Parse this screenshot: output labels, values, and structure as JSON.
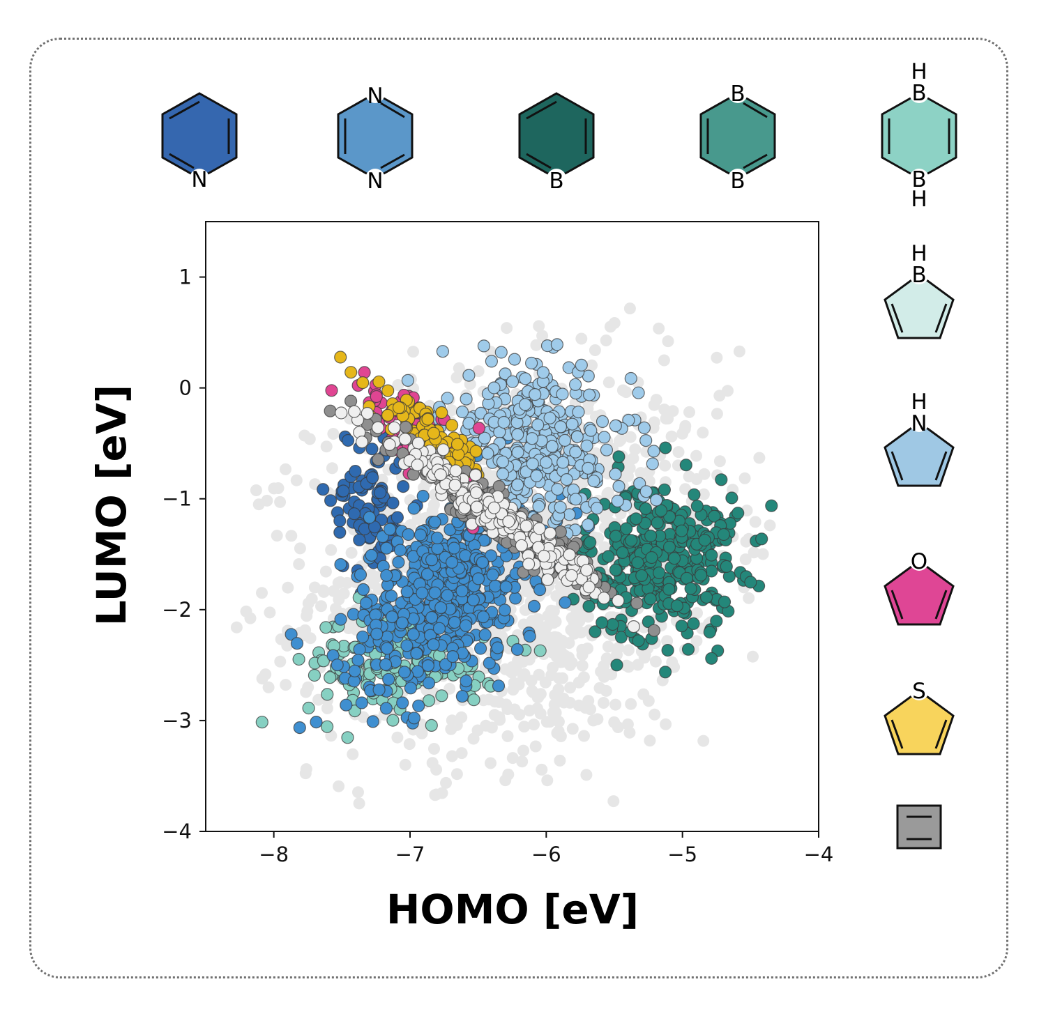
{
  "chart_data": {
    "type": "scatter",
    "title": "",
    "xlabel": "HOMO [eV]",
    "ylabel": "LUMO [eV]",
    "xlim": [
      -8.5,
      -4
    ],
    "ylim": [
      -4,
      1.5
    ],
    "xticks": [
      -8,
      -7,
      -6,
      -5,
      -4
    ],
    "yticks": [
      1,
      0,
      -1,
      -2,
      -3,
      -4
    ],
    "xtick_labels": [
      "−8",
      "−7",
      "−6",
      "−5",
      "−4"
    ],
    "ytick_labels": [
      "1",
      "0",
      "−1",
      "−2",
      "−3",
      "−4"
    ],
    "grid": false,
    "background_series": {
      "name": "all molecules",
      "color": "#e6e6e6",
      "n": 1400,
      "homo_center": -6.2,
      "lumo_center": -1.6,
      "homo_spread": 0.75,
      "lumo_spread": 0.85,
      "homo_range": [
        -8.3,
        -4.2
      ],
      "lumo_range": [
        -3.75,
        1.45
      ]
    },
    "series": [
      {
        "name": "pyridine",
        "color": "#2f6ab0",
        "n": 90,
        "homo_center": -7.3,
        "lumo_center": -1.05,
        "homo_spread": 0.14,
        "lumo_spread": 0.35,
        "slope": -0.3
      },
      {
        "name": "diborinine",
        "color": "#86d0c2",
        "n": 170,
        "homo_center": -7.05,
        "lumo_center": -2.45,
        "homo_spread": 0.35,
        "lumo_spread": 0.25,
        "slope": 0.1
      },
      {
        "name": "borinine",
        "color": "#24877a",
        "n": 330,
        "homo_center": -5.15,
        "lumo_center": -1.55,
        "homo_spread": 0.28,
        "lumo_spread": 0.35,
        "slope": 0.1
      },
      {
        "name": "pyrazine",
        "color": "#3f8fd0",
        "n": 520,
        "homo_center": -6.75,
        "lumo_center": -1.85,
        "homo_spread": 0.35,
        "lumo_spread": 0.4,
        "slope": 0.5
      },
      {
        "name": "pyrrole",
        "color": "#9fcbea",
        "n": 320,
        "homo_center": -6.05,
        "lumo_center": -0.5,
        "homo_spread": 0.35,
        "lumo_spread": 0.35,
        "slope": -0.3
      },
      {
        "name": "furan",
        "color": "#e04592",
        "n": 85,
        "homo_center": -6.95,
        "lumo_center": -0.4,
        "homo_spread": 0.25,
        "lumo_spread": 0.15,
        "slope": -0.85
      },
      {
        "name": "thiophene",
        "color": "#e6b71a",
        "n": 90,
        "homo_center": -6.85,
        "lumo_center": -0.45,
        "homo_spread": 0.22,
        "lumo_spread": 0.1,
        "slope": -0.85
      },
      {
        "name": "alkene",
        "color": "#8f8f8f",
        "n": 230,
        "homo_center": -6.25,
        "lumo_center": -1.25,
        "homo_spread": 0.4,
        "lumo_spread": 0.1,
        "slope": -0.85
      },
      {
        "name": "borole",
        "color": "#efefef",
        "n": 230,
        "homo_center": -6.4,
        "lumo_center": -1.1,
        "homo_spread": 0.4,
        "lumo_spread": 0.08,
        "slope": -0.85
      }
    ],
    "legend_placement": "top-and-right"
  },
  "legend_structures": [
    {
      "name": "pyridine",
      "color": "#3567af",
      "ring": "hex",
      "atoms": [
        "N"
      ]
    },
    {
      "name": "pyrazine",
      "color": "#5b97c9",
      "ring": "hex",
      "atoms": [
        "N",
        "N"
      ]
    },
    {
      "name": "borinine",
      "color": "#1e665e",
      "ring": "hex",
      "atoms": [
        "B"
      ]
    },
    {
      "name": "diborinine-para",
      "color": "#48998d",
      "ring": "hex",
      "atoms": [
        "B",
        "B"
      ]
    },
    {
      "name": "dihydrodiborinine",
      "color": "#8dd2c5",
      "ring": "hex",
      "atoms": [
        "H",
        "B",
        "B",
        "H"
      ]
    },
    {
      "name": "borole",
      "color": "#d2ece8",
      "ring": "pent",
      "atoms": [
        "H",
        "B"
      ]
    },
    {
      "name": "pyrrole",
      "color": "#9fc8e4",
      "ring": "pent",
      "atoms": [
        "H",
        "N"
      ]
    },
    {
      "name": "furan",
      "color": "#df4695",
      "ring": "pent",
      "atoms": [
        "O"
      ]
    },
    {
      "name": "thiophene",
      "color": "#f8d45c",
      "ring": "pent",
      "atoms": [
        "S"
      ]
    },
    {
      "name": "alkene",
      "color": "#9a9a9a",
      "ring": "box",
      "atoms": []
    }
  ]
}
